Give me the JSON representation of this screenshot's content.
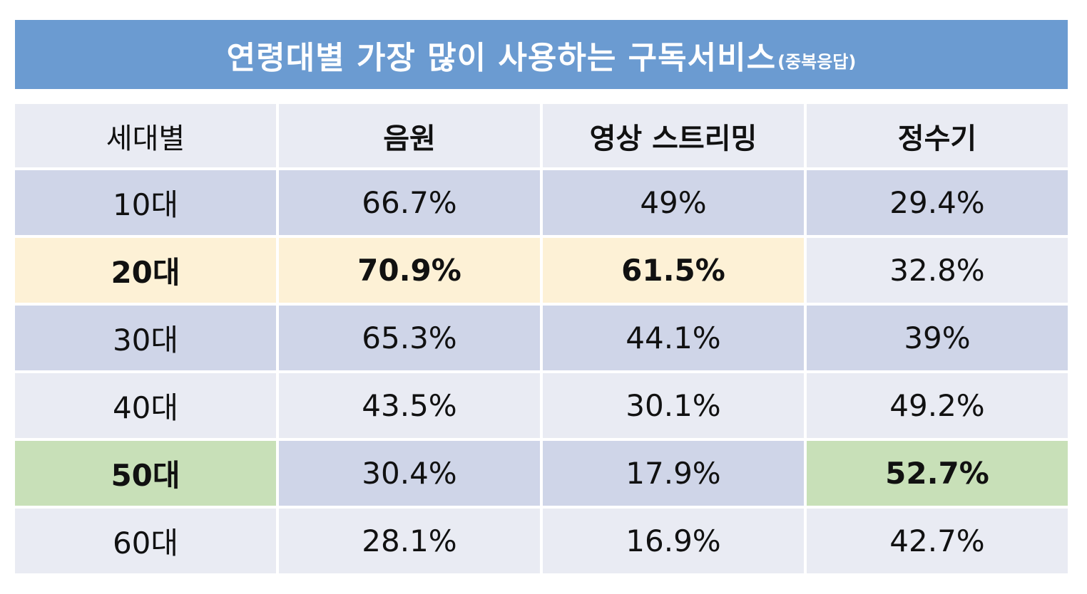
{
  "title": {
    "main": "연령대별 가장 많이 사용하는 구독서비스",
    "sub": "(중복응답)"
  },
  "colors": {
    "banner": "#6b9bd1",
    "header_bg": "#e9ebf3",
    "row_dark": "#cfd5e8",
    "row_light": "#e9ebf3",
    "highlight_yellow": "#fdf1d6",
    "highlight_green": "#c8e0b8"
  },
  "chart_data": {
    "type": "table",
    "columns": [
      "세대별",
      "음원",
      "영상 스트리밍",
      "정수기"
    ],
    "rows": [
      {
        "label": "10대",
        "values": [
          "66.7%",
          "49%",
          "29.4%"
        ]
      },
      {
        "label": "20대",
        "values": [
          "70.9%",
          "61.5%",
          "32.8%"
        ]
      },
      {
        "label": "30대",
        "values": [
          "65.3%",
          "44.1%",
          "39%"
        ]
      },
      {
        "label": "40대",
        "values": [
          "43.5%",
          "30.1%",
          "49.2%"
        ]
      },
      {
        "label": "50대",
        "values": [
          "30.4%",
          "17.9%",
          "52.7%"
        ]
      },
      {
        "label": "60대",
        "values": [
          "28.1%",
          "16.9%",
          "42.7%"
        ]
      }
    ],
    "highlights": [
      {
        "row": 1,
        "cols": [
          0,
          1,
          2
        ],
        "color": "yellow",
        "bold": true
      },
      {
        "row": 4,
        "cols": [
          0,
          3
        ],
        "color": "green",
        "bold": true
      }
    ]
  }
}
